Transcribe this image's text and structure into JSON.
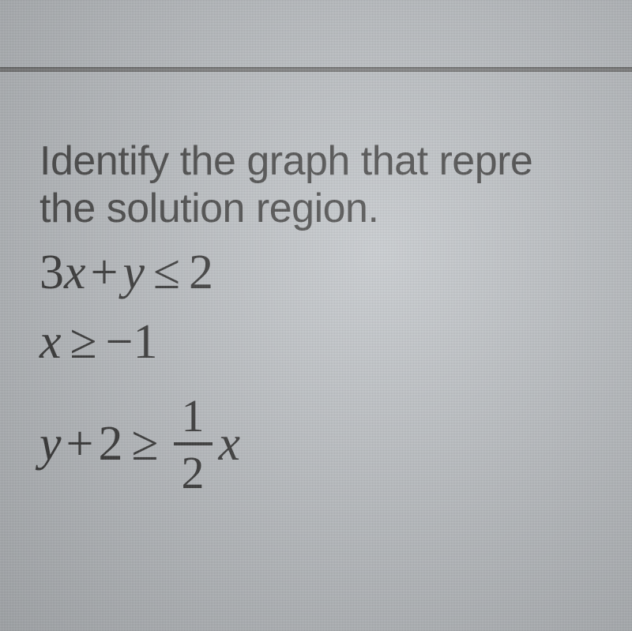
{
  "question": {
    "line1": "Identify the graph that repre",
    "line2": "the solution region."
  },
  "inequalities": {
    "line1": {
      "lhs_term1_coef": "3",
      "lhs_term1_var": "x",
      "lhs_op1": "+",
      "lhs_term2_var": "y",
      "relation": "≤",
      "rhs": "2"
    },
    "line2": {
      "lhs_var": "x",
      "relation": "≥",
      "rhs_sign": "−",
      "rhs_val": "1"
    },
    "line3": {
      "lhs_term1_var": "y",
      "lhs_op1": "+",
      "lhs_term2": "2",
      "relation": "≥",
      "frac_num": "1",
      "frac_den": "2",
      "rhs_var": "x"
    }
  },
  "styling": {
    "background_base": "#c8ccd0",
    "background_stripe": "#b8bcc0",
    "text_color": "#3a3f44",
    "math_color": "#333333",
    "divider_color": "#555555",
    "question_fontsize": 52,
    "math_fontsize": 62,
    "font_question": "Arial",
    "font_math": "Times New Roman"
  }
}
